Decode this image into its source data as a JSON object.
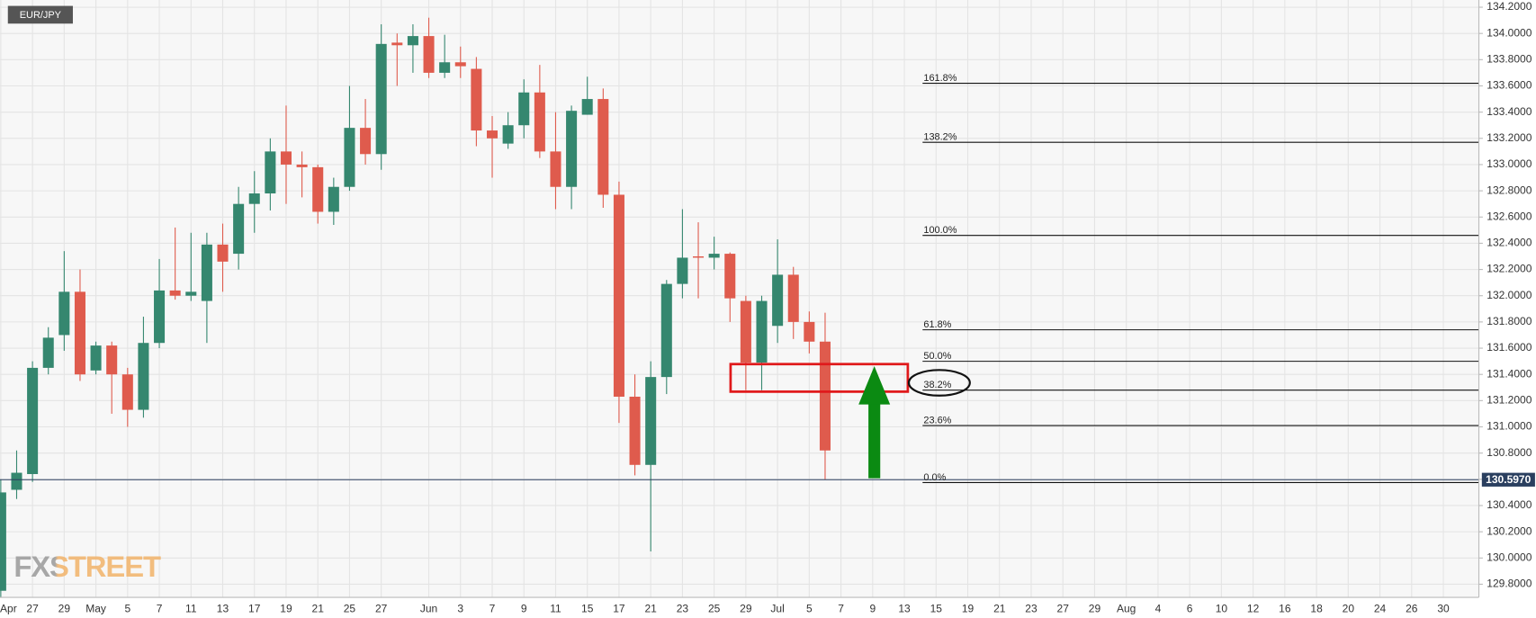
{
  "chart_data": {
    "type": "candlestick",
    "title": "EUR/JPY",
    "watermark": "FXSTREET",
    "up_color": "#35876f",
    "down_color": "#df5b4d",
    "grid": true,
    "categories": [
      "Apr",
      null,
      "27",
      null,
      "29",
      null,
      "May",
      null,
      "5",
      null,
      "7",
      null,
      "11",
      null,
      "13",
      null,
      "17",
      null,
      "19",
      null,
      "21",
      null,
      "25",
      null,
      "27",
      null,
      null,
      "Jun",
      null,
      "3",
      null,
      "7",
      null,
      "9",
      null,
      "11",
      null,
      "15",
      null,
      "17",
      null,
      "21",
      null,
      "23",
      null,
      "25",
      null,
      "29",
      null,
      "Jul",
      null,
      "5",
      null,
      "7",
      null,
      "9",
      null,
      "13",
      null,
      "15",
      null,
      "19",
      null,
      "21",
      null,
      "23",
      null,
      "27",
      null,
      "29",
      null,
      "Aug",
      null,
      "4",
      null,
      "6",
      null,
      "10",
      null,
      "12",
      null,
      "16",
      null,
      "18",
      null,
      "20",
      null,
      "24",
      null,
      "26",
      null,
      "30",
      null
    ],
    "series": [
      {
        "open": [
          129.75,
          130.52,
          130.64,
          131.45,
          131.7,
          132.03,
          131.43,
          131.62,
          131.4,
          131.13,
          131.64,
          132.04,
          132.0,
          131.96,
          132.39,
          132.32,
          132.7,
          132.78,
          133.1,
          133.0,
          132.98,
          132.64,
          132.83,
          133.28,
          133.08,
          133.93,
          133.91,
          133.98,
          133.7,
          133.78,
          133.73,
          133.26,
          133.16,
          133.3,
          133.55,
          133.1,
          132.83,
          133.38,
          133.5,
          132.77,
          131.23,
          130.71,
          131.38,
          132.09,
          132.3,
          132.29,
          132.32,
          131.96,
          131.49,
          131.77,
          132.16,
          131.8,
          131.65,
          null,
          null,
          null,
          null,
          null,
          null,
          null,
          null,
          null,
          null,
          null,
          null,
          null,
          null,
          null,
          null,
          null,
          null,
          null,
          null,
          null,
          null,
          null,
          null,
          null,
          null,
          null,
          null,
          null,
          null,
          null,
          null,
          null,
          null,
          null,
          null,
          null,
          null,
          null,
          null
        ],
        "high": [
          130.6,
          130.82,
          131.5,
          131.76,
          132.34,
          132.2,
          131.65,
          131.65,
          131.45,
          131.84,
          132.28,
          132.52,
          132.48,
          132.48,
          132.55,
          132.83,
          132.95,
          133.2,
          133.45,
          133.1,
          133.0,
          132.9,
          133.6,
          133.5,
          134.07,
          134.0,
          134.07,
          134.12,
          133.99,
          133.9,
          133.82,
          133.37,
          133.4,
          133.65,
          133.76,
          133.4,
          133.45,
          133.67,
          133.58,
          132.87,
          131.4,
          131.5,
          132.12,
          132.66,
          132.56,
          132.45,
          132.33,
          132.0,
          132.0,
          132.43,
          132.22,
          131.88,
          131.87,
          null,
          null,
          null,
          null,
          null,
          null,
          null,
          null,
          null,
          null,
          null,
          null,
          null,
          null,
          null,
          null,
          null,
          null,
          null,
          null,
          null,
          null,
          null,
          null,
          null,
          null,
          null,
          null,
          null,
          null,
          null,
          null,
          null,
          null,
          null,
          null,
          null,
          null,
          null,
          null
        ],
        "low": [
          129.7,
          130.45,
          130.58,
          131.4,
          131.58,
          131.35,
          131.4,
          131.1,
          131.0,
          131.07,
          131.6,
          131.97,
          131.96,
          131.64,
          132.03,
          132.2,
          132.48,
          132.65,
          132.7,
          132.75,
          132.55,
          132.54,
          132.8,
          133.0,
          132.96,
          133.6,
          133.7,
          133.66,
          133.66,
          133.66,
          133.14,
          132.9,
          133.12,
          133.2,
          133.05,
          132.66,
          132.66,
          133.38,
          132.67,
          131.03,
          130.63,
          130.05,
          131.25,
          131.98,
          131.98,
          132.2,
          131.8,
          131.28,
          131.28,
          131.64,
          131.67,
          131.56,
          130.6,
          null,
          null,
          null,
          null,
          null,
          null,
          null,
          null,
          null,
          null,
          null,
          null,
          null,
          null,
          null,
          null,
          null,
          null,
          null,
          null,
          null,
          null,
          null,
          null,
          null,
          null,
          null,
          null,
          null,
          null,
          null,
          null,
          null,
          null,
          null,
          null,
          null,
          null,
          null,
          null
        ],
        "close": [
          130.5,
          130.65,
          131.45,
          131.68,
          132.03,
          131.4,
          131.62,
          131.4,
          131.13,
          131.64,
          132.04,
          132.0,
          132.03,
          132.39,
          132.26,
          132.7,
          132.78,
          133.1,
          133.0,
          132.98,
          132.64,
          132.83,
          133.28,
          133.08,
          133.92,
          133.91,
          133.98,
          133.7,
          133.78,
          133.75,
          133.26,
          133.2,
          133.3,
          133.55,
          133.1,
          132.83,
          133.41,
          133.5,
          132.77,
          131.23,
          130.71,
          131.38,
          132.09,
          132.29,
          132.29,
          132.32,
          131.98,
          131.49,
          131.96,
          132.16,
          131.8,
          131.65,
          130.82,
          null,
          null,
          null,
          null,
          null,
          null,
          null,
          null,
          null,
          null,
          null,
          null,
          null,
          null,
          null,
          null,
          null,
          null,
          null,
          null,
          null,
          null,
          null,
          null,
          null,
          null,
          null,
          null,
          null,
          null,
          null,
          null,
          null,
          null,
          null,
          null,
          null,
          null,
          null,
          null
        ]
      }
    ],
    "ylim": [
      129.7,
      134.255
    ],
    "yticks": [
      {
        "value": 129.8,
        "label": "129.8000"
      },
      {
        "value": 130.0,
        "label": "130.0000"
      },
      {
        "value": 130.2,
        "label": "130.2000"
      },
      {
        "value": 130.4,
        "label": "130.4000"
      },
      {
        "value": 130.6,
        "label": "130.6000"
      },
      {
        "value": 130.8,
        "label": "130.8000"
      },
      {
        "value": 131.0,
        "label": "131.0000"
      },
      {
        "value": 131.2,
        "label": "131.2000"
      },
      {
        "value": 131.4,
        "label": "131.4000"
      },
      {
        "value": 131.6,
        "label": "131.6000"
      },
      {
        "value": 131.8,
        "label": "131.8000"
      },
      {
        "value": 132.0,
        "label": "132.0000"
      },
      {
        "value": 132.2,
        "label": "132.2000"
      },
      {
        "value": 132.4,
        "label": "132.4000"
      },
      {
        "value": 132.6,
        "label": "132.6000"
      },
      {
        "value": 132.8,
        "label": "132.8000"
      },
      {
        "value": 133.0,
        "label": "133.0000"
      },
      {
        "value": 133.2,
        "label": "133.2000"
      },
      {
        "value": 133.4,
        "label": "133.4000"
      },
      {
        "value": 133.6,
        "label": "133.6000"
      },
      {
        "value": 133.8,
        "label": "133.8000"
      },
      {
        "value": 134.0,
        "label": "134.0000"
      },
      {
        "value": 134.2,
        "label": "134.2000"
      }
    ],
    "last_price": {
      "value": 130.597,
      "label": "130.5970"
    },
    "fib_levels": [
      {
        "value": 133.62,
        "label": "161.8%"
      },
      {
        "value": 133.17,
        "label": "138.2%"
      },
      {
        "value": 132.46,
        "label": "100.0%"
      },
      {
        "value": 131.74,
        "label": "61.8%"
      },
      {
        "value": 131.5,
        "label": "50.0%"
      },
      {
        "value": 131.28,
        "label": "38.2%"
      },
      {
        "value": 131.01,
        "label": "23.6%"
      },
      {
        "value": 130.575,
        "label": "0.0%"
      }
    ]
  }
}
